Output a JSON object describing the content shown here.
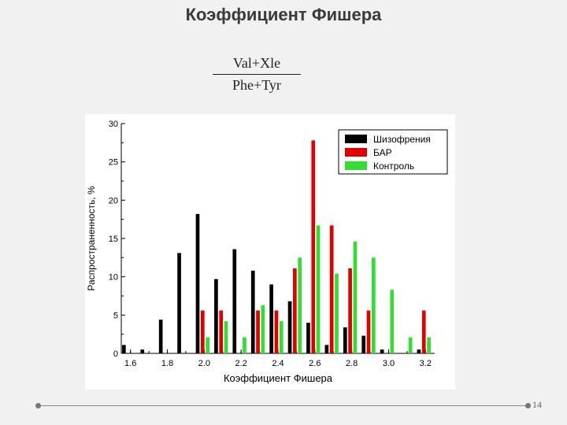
{
  "slide": {
    "title": "Коэффициент Фишера",
    "fraction_numerator": "Val+Xle",
    "fraction_denominator": "Phe+Tyr",
    "page_number": "14"
  },
  "chart_data": {
    "type": "bar",
    "xlabel": "Коэффициент Фишера",
    "ylabel": "Распространенность, %",
    "ylim": [
      0,
      30
    ],
    "yticks": [
      "0",
      "5",
      "10",
      "15",
      "20",
      "25",
      "30"
    ],
    "xticks": [
      "1.6",
      "1.8",
      "2.0",
      "2.2",
      "2.4",
      "2.6",
      "2.8",
      "3.0",
      "3.2"
    ],
    "legend_position": "top-right",
    "categories": [
      "1.6",
      "1.7",
      "1.8",
      "1.9",
      "2.0",
      "2.1",
      "2.2",
      "2.3",
      "2.4",
      "2.5",
      "2.6",
      "2.7",
      "2.8",
      "2.9",
      "3.0",
      "3.1",
      "3.2"
    ],
    "series": [
      {
        "name": "Шизофрения",
        "color": "#000000",
        "values": [
          1.1,
          0.5,
          4.4,
          13.1,
          18.2,
          9.7,
          13.6,
          10.8,
          9.0,
          6.8,
          4.0,
          1.1,
          3.4,
          2.3,
          0.5,
          0,
          0.5
        ]
      },
      {
        "name": "БАР",
        "color": "#e00000",
        "values": [
          0,
          0,
          0,
          0,
          5.6,
          5.6,
          0,
          5.6,
          5.6,
          11.1,
          27.8,
          16.7,
          11.1,
          5.6,
          0,
          0,
          5.6
        ]
      },
      {
        "name": "Контроль",
        "color": "#33dd33",
        "values": [
          0,
          0,
          0,
          0,
          2.1,
          4.2,
          2.1,
          6.3,
          4.2,
          12.5,
          16.7,
          10.4,
          14.6,
          12.5,
          8.3,
          2.1,
          2.1
        ]
      }
    ]
  }
}
